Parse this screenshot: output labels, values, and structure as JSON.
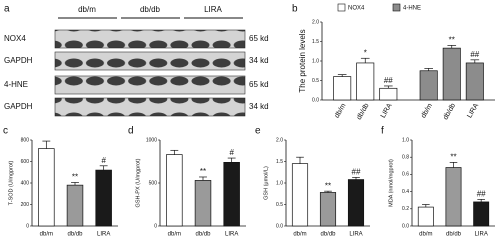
{
  "blot": {
    "panel_label": "a",
    "groups": [
      "db/m",
      "db/db",
      "LIRA"
    ],
    "rows": [
      {
        "protein": "NOX4",
        "size": "65 kd"
      },
      {
        "protein": "GAPDH",
        "size": "34 kd"
      },
      {
        "protein": "4-HNE",
        "size": "65 kd"
      },
      {
        "protein": "GAPDH",
        "size": "34 kd"
      }
    ]
  },
  "chart_data": [
    {
      "type": "bar",
      "panel_label": "b",
      "ylabel": "The protein levels",
      "categories": [
        "db/m",
        "db/db",
        "LIRA"
      ],
      "series": [
        {
          "name": "NOX4",
          "color": "#ffffff",
          "values": [
            0.6,
            0.95,
            0.3
          ],
          "errors": [
            0.05,
            0.12,
            0.06
          ],
          "annotations": [
            null,
            "*",
            "##"
          ]
        },
        {
          "name": "4-HNE",
          "color": "#8c8c8c",
          "values": [
            0.75,
            1.33,
            0.95
          ],
          "errors": [
            0.06,
            0.07,
            0.08
          ],
          "annotations": [
            null,
            "**",
            "##"
          ]
        }
      ],
      "ylim": [
        0,
        2
      ],
      "yticks": [
        {
          "value": 0,
          "label": "0.0"
        },
        0.5,
        {
          "value": 1,
          "label": "1.0"
        },
        1.5,
        {
          "value": 2,
          "label": "2.0"
        }
      ]
    },
    {
      "type": "bar",
      "panel_label": "c",
      "ylabel": "T-SOD (U/mgprot)",
      "categories": [
        "db/m",
        "db/db",
        "LIRA"
      ],
      "colors": [
        "#ffffff",
        "#9a9a9a",
        "#1a1a1a"
      ],
      "values": [
        720,
        380,
        520
      ],
      "errors": [
        70,
        25,
        40
      ],
      "annotations": [
        null,
        "**",
        "#"
      ],
      "ylim": [
        0,
        800
      ],
      "yticks": [
        0,
        200,
        400,
        600,
        800
      ]
    },
    {
      "type": "bar",
      "panel_label": "d",
      "ylabel": "GSH-PX (U/mgprot)",
      "categories": [
        "db/m",
        "db/db",
        "LIRA"
      ],
      "colors": [
        "#ffffff",
        "#9a9a9a",
        "#1a1a1a"
      ],
      "values": [
        830,
        530,
        740
      ],
      "errors": [
        50,
        40,
        50
      ],
      "annotations": [
        null,
        "**",
        "#"
      ],
      "ylim": [
        0,
        1000
      ],
      "yticks": [
        0,
        500,
        1000
      ]
    },
    {
      "type": "bar",
      "panel_label": "e",
      "ylabel": "GSH (μmol/L)",
      "categories": [
        "db/m",
        "db/db",
        "LIRA"
      ],
      "colors": [
        "#ffffff",
        "#9a9a9a",
        "#1a1a1a"
      ],
      "values": [
        1.45,
        0.78,
        1.08
      ],
      "errors": [
        0.15,
        0.03,
        0.05
      ],
      "annotations": [
        null,
        "**",
        "##"
      ],
      "ylim": [
        0,
        2
      ],
      "yticks": [
        {
          "value": 0,
          "label": "0.0"
        },
        0.5,
        {
          "value": 1,
          "label": "1.0"
        },
        1.5,
        {
          "value": 2,
          "label": "2.0"
        }
      ]
    },
    {
      "type": "bar",
      "panel_label": "f",
      "ylabel": "MDA (nmol/mgprot)",
      "categories": [
        "db/m",
        "db/db",
        "LIRA"
      ],
      "colors": [
        "#ffffff",
        "#9a9a9a",
        "#1a1a1a"
      ],
      "values": [
        0.22,
        0.68,
        0.28
      ],
      "errors": [
        0.03,
        0.06,
        0.03
      ],
      "annotations": [
        null,
        "**",
        "##"
      ],
      "ylim": [
        0,
        1
      ],
      "yticks": [
        {
          "value": 0,
          "label": "0.0"
        },
        0.2,
        0.4,
        0.6,
        0.8,
        {
          "value": 1,
          "label": "1.0"
        }
      ]
    }
  ]
}
